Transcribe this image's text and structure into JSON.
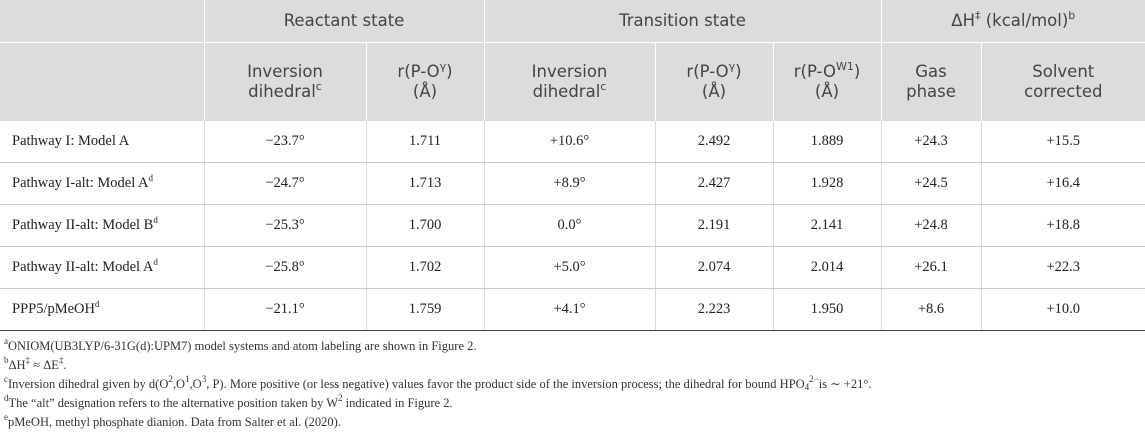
{
  "groups": {
    "reactant": "Reactant state",
    "transition": "Transition state",
    "dh_main": "ΔH",
    "dh_ddagger": "‡",
    "dh_unit": " (kcal/mol)",
    "dh_note": "b"
  },
  "columns": {
    "r_inv_line1": "Inversion",
    "r_inv_line2": "dihedral",
    "r_inv_note": "c",
    "r_rpo_line1": "r(P-O",
    "r_rpo_sup": "γ",
    "r_rpo_close": ")",
    "r_rpo_unit": "(Å)",
    "t_inv_line1": "Inversion",
    "t_inv_line2": "dihedral",
    "t_inv_note": "c",
    "t_rpo_line1": "r(P-O",
    "t_rpo_sup": "γ",
    "t_rpo_close": ")",
    "t_rpo_unit": "(Å)",
    "t_rpw_line1": "r(P-O",
    "t_rpw_sup": "W1",
    "t_rpw_close": ")",
    "t_rpw_unit": "(Å)",
    "gas_line1": "Gas",
    "gas_line2": "phase",
    "solv_line1": "Solvent",
    "solv_line2": "corrected"
  },
  "rows": [
    {
      "label": "Pathway I: Model A",
      "note": "",
      "r_inv": "−23.7°",
      "r_rpo": "1.711",
      "t_inv": "+10.6°",
      "t_rpo": "2.492",
      "t_rpw": "1.889",
      "gas": "+24.3",
      "solv": "+15.5"
    },
    {
      "label": "Pathway I-alt: Model A",
      "note": "d",
      "r_inv": "−24.7°",
      "r_rpo": "1.713",
      "t_inv": "+8.9°",
      "t_rpo": "2.427",
      "t_rpw": "1.928",
      "gas": "+24.5",
      "solv": "+16.4"
    },
    {
      "label": "Pathway II-alt: Model B",
      "note": "d",
      "r_inv": "−25.3°",
      "r_rpo": "1.700",
      "t_inv": "0.0°",
      "t_rpo": "2.191",
      "t_rpw": "2.141",
      "gas": "+24.8",
      "solv": "+18.8"
    },
    {
      "label": "Pathway II-alt: Model A",
      "note": "d",
      "r_inv": "−25.8°",
      "r_rpo": "1.702",
      "t_inv": "+5.0°",
      "t_rpo": "2.074",
      "t_rpw": "2.014",
      "gas": "+26.1",
      "solv": "+22.3"
    },
    {
      "label": "PPP5/pMeOH",
      "note": "d",
      "r_inv": "−21.1°",
      "r_rpo": "1.759",
      "t_inv": "+4.1°",
      "t_rpo": "2.223",
      "t_rpw": "1.950",
      "gas": "+8.6",
      "solv": "+10.0"
    }
  ],
  "footnotes": {
    "a_mark": "a",
    "a_text": "ONIOM(UB3LYP/6-31G(d):UPM7) model systems and atom labeling are shown in Figure 2.",
    "b_mark": "b",
    "b_dh": "ΔH",
    "b_dd1": "‡",
    "b_approx": " ≈ ΔE",
    "b_dd2": "‡",
    "b_end": ".",
    "c_mark": "c",
    "c_text1": "Inversion dihedral given by d(O",
    "c_s1": "2",
    "c_t2": ",O",
    "c_s2": "1",
    "c_t3": ",O",
    "c_s3": "3",
    "c_text2": ", P). More positive (or less negative) values favor the product side of the inversion process; the dihedral for bound HPO",
    "c_sub": "4",
    "c_sup": "2−",
    "c_text3": "is ∼ +21°.",
    "d_mark": "d",
    "d_text1": "The “alt” designation refers to the alternative position taken by W",
    "d_sup": "2",
    "d_text2": " indicated in Figure 2.",
    "e_mark": "e",
    "e_text": "pMeOH, methyl phosphate dianion. Data from Salter et al. (2020)."
  }
}
